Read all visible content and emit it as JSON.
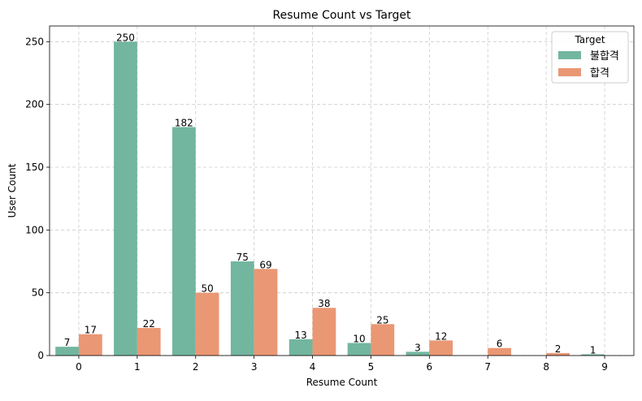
{
  "chart_data": {
    "type": "bar",
    "title": "Resume Count vs Target",
    "xlabel": "Resume Count",
    "ylabel": "User Count",
    "categories": [
      "0",
      "1",
      "2",
      "3",
      "4",
      "5",
      "6",
      "7",
      "8",
      "9"
    ],
    "y_ticks": [
      "0",
      "50",
      "100",
      "150",
      "200",
      "250"
    ],
    "ylim": [
      0,
      262.5
    ],
    "grid": true,
    "legend": {
      "title": "Target",
      "placement": "top-right"
    },
    "series": [
      {
        "name": "불합격",
        "color": "#72b6a0",
        "values": [
          7,
          250,
          182,
          75,
          13,
          10,
          3,
          null,
          null,
          1
        ]
      },
      {
        "name": "합격",
        "color": "#ea9774",
        "values": [
          17,
          22,
          50,
          69,
          38,
          25,
          12,
          6,
          2,
          null
        ]
      }
    ]
  }
}
